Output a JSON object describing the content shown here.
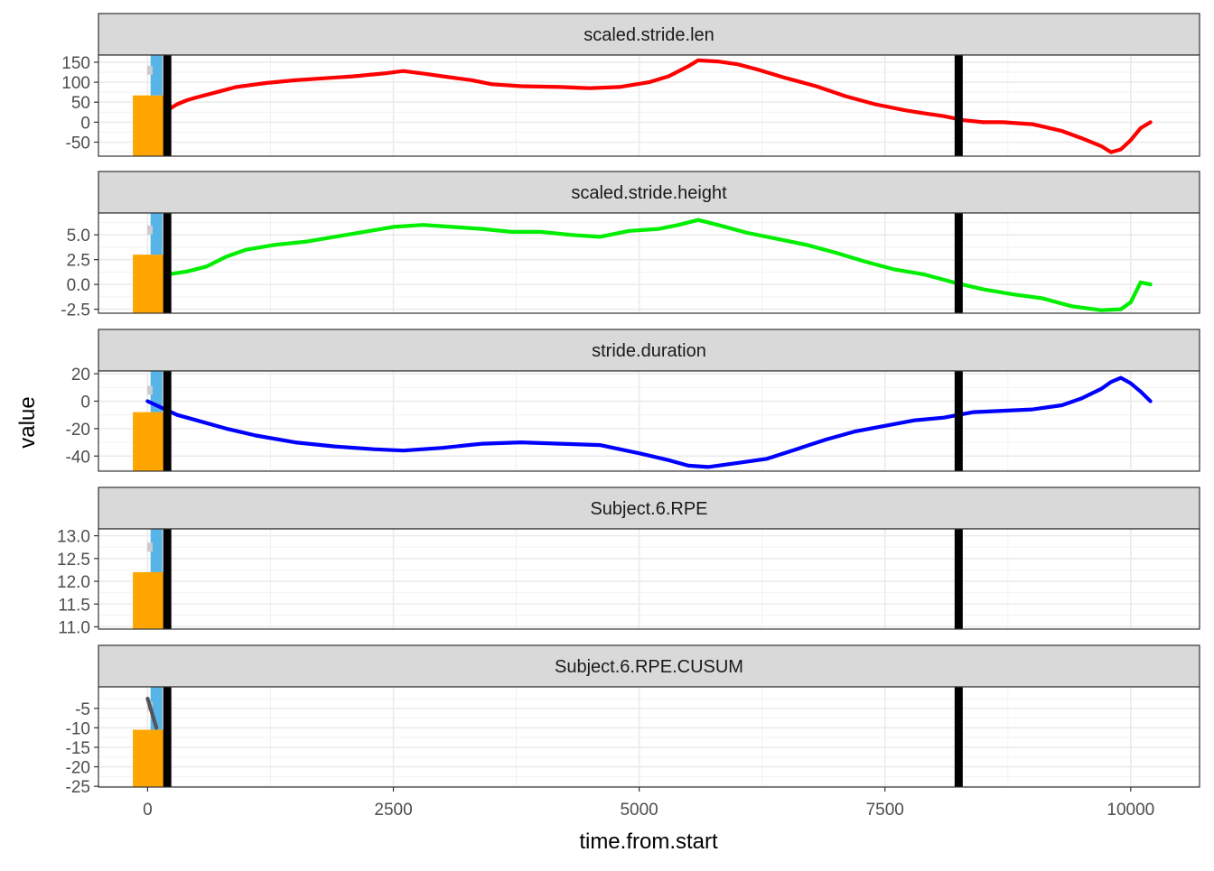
{
  "chart_data": {
    "type": "line",
    "layout": "faceted-small-multiples",
    "xlabel": "time.from.start",
    "ylabel": "value",
    "xlim": [
      -500,
      10700
    ],
    "x_ticks": [
      0,
      2500,
      5000,
      7500,
      10000
    ],
    "x_tick_labels": [
      "0",
      "2500",
      "5000",
      "7500",
      "10000"
    ],
    "grid": true,
    "legend": "none",
    "vlines": [
      {
        "x": 200,
        "color": "#000000"
      },
      {
        "x": 8250,
        "color": "#000000"
      }
    ],
    "facets": [
      {
        "title": "scaled.stride.len",
        "color": "#ff0000",
        "ylim": [
          -85,
          168
        ],
        "y_ticks": [
          150,
          100,
          50,
          0,
          -50
        ],
        "y_tick_labels": [
          "150",
          "100",
          "50",
          "0",
          "-50"
        ],
        "bar_top": 67,
        "marker_y": 130,
        "x": [
          200,
          300,
          400,
          500,
          700,
          900,
          1200,
          1500,
          1800,
          2100,
          2400,
          2600,
          2800,
          3000,
          3300,
          3500,
          3800,
          4200,
          4500,
          4800,
          5100,
          5300,
          5500,
          5600,
          5800,
          6000,
          6200,
          6500,
          6800,
          7100,
          7400,
          7700,
          7900,
          8100,
          8300,
          8500,
          8700,
          9000,
          9300,
          9500,
          9700,
          9800,
          9900,
          10000,
          10100,
          10200
        ],
        "y": [
          30,
          45,
          55,
          62,
          75,
          88,
          98,
          105,
          110,
          115,
          122,
          128,
          122,
          115,
          105,
          95,
          90,
          88,
          85,
          88,
          100,
          115,
          140,
          155,
          152,
          145,
          132,
          110,
          90,
          65,
          45,
          30,
          22,
          15,
          5,
          0,
          0,
          -5,
          -22,
          -40,
          -60,
          -75,
          -68,
          -45,
          -15,
          0
        ]
      },
      {
        "title": "scaled.stride.height",
        "color": "#00ee00",
        "ylim": [
          -2.9,
          7.2
        ],
        "y_ticks": [
          5.0,
          2.5,
          0.0,
          -2.5
        ],
        "y_tick_labels": [
          "5.0",
          "2.5",
          "0.0",
          "-2.5"
        ],
        "bar_top": 3.0,
        "marker_y": 5.5,
        "x": [
          200,
          400,
          600,
          800,
          1000,
          1300,
          1600,
          1900,
          2200,
          2500,
          2800,
          3100,
          3400,
          3700,
          4000,
          4300,
          4600,
          4900,
          5200,
          5400,
          5600,
          5800,
          6100,
          6400,
          6700,
          7000,
          7300,
          7600,
          7900,
          8200,
          8500,
          8800,
          9100,
          9400,
          9700,
          9900,
          10000,
          10100,
          10200
        ],
        "y": [
          1.0,
          1.3,
          1.8,
          2.8,
          3.5,
          4.0,
          4.3,
          4.8,
          5.3,
          5.8,
          6.0,
          5.8,
          5.6,
          5.3,
          5.3,
          5.0,
          4.8,
          5.4,
          5.6,
          6.0,
          6.5,
          6.0,
          5.2,
          4.6,
          4.0,
          3.2,
          2.3,
          1.5,
          1.0,
          0.2,
          -0.5,
          -1.0,
          -1.4,
          -2.2,
          -2.6,
          -2.5,
          -1.8,
          0.2,
          0.0
        ]
      },
      {
        "title": "stride.duration",
        "color": "#0000ff",
        "ylim": [
          -51,
          22
        ],
        "y_ticks": [
          20,
          0,
          -20,
          -40
        ],
        "y_tick_labels": [
          "20",
          "0",
          "-20",
          "-40"
        ],
        "bar_top": -8,
        "marker_y": 8,
        "x": [
          0,
          150,
          300,
          500,
          800,
          1100,
          1500,
          1900,
          2300,
          2600,
          3000,
          3400,
          3800,
          4200,
          4600,
          5000,
          5300,
          5500,
          5700,
          6000,
          6300,
          6600,
          6900,
          7200,
          7500,
          7800,
          8100,
          8400,
          8700,
          9000,
          9300,
          9500,
          9700,
          9800,
          9900,
          10000,
          10100,
          10200
        ],
        "y": [
          0,
          -5,
          -10,
          -14,
          -20,
          -25,
          -30,
          -33,
          -35,
          -36,
          -34,
          -31,
          -30,
          -31,
          -32,
          -38,
          -43,
          -47,
          -48,
          -45,
          -42,
          -35,
          -28,
          -22,
          -18,
          -14,
          -12,
          -8,
          -7,
          -6,
          -3,
          2,
          9,
          14,
          17,
          13,
          7,
          0
        ]
      },
      {
        "title": "Subject.6.RPE",
        "color": "#000000",
        "ylim": [
          10.95,
          13.15
        ],
        "y_ticks": [
          13.0,
          12.5,
          12.0,
          11.5,
          11.0
        ],
        "y_tick_labels": [
          "13.0",
          "12.5",
          "12.0",
          "11.5",
          "11.0"
        ],
        "bar_top": 12.2,
        "marker_y": 12.75,
        "x": [],
        "y": []
      },
      {
        "title": "Subject.6.RPE.CUSUM",
        "color": "#555555",
        "ylim": [
          -25.2,
          0.5
        ],
        "y_ticks": [
          -5,
          -10,
          -15,
          -20,
          -25
        ],
        "y_tick_labels": [
          "-5",
          "-10",
          "-15",
          "-20",
          "-25"
        ],
        "bar_top": -10.5,
        "marker_y": -4.5,
        "x": [
          0,
          30,
          60,
          90
        ],
        "y": [
          -2.5,
          -5.0,
          -7.5,
          -10.0
        ]
      }
    ],
    "bar": {
      "x_from": -150,
      "x_to": 170,
      "color": "#ffa500"
    },
    "band": {
      "x_from": 30,
      "x_to": 150,
      "color": "#56b4e9"
    },
    "marker_color": "#cccccc"
  }
}
